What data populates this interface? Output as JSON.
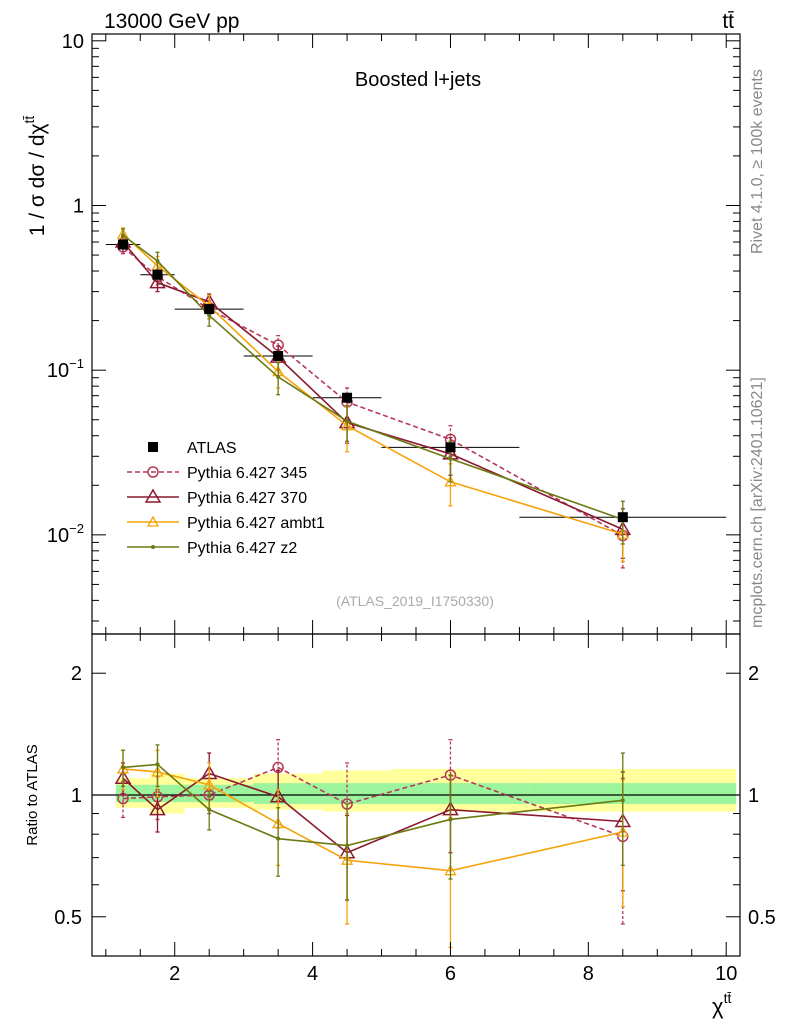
{
  "header": {
    "energy_label": "13000 GeV pp",
    "process_label": "tt̄",
    "analysis_id": "(ATLAS_2019_I1750330)"
  },
  "side": {
    "rivet": "Rivet 4.1.0, ≥ 100k events",
    "mcplots": "mcplots.cern.ch [arXiv:2401.10621]"
  },
  "colors": {
    "atlas": "#000000",
    "p345": "#b53a5a",
    "p370": "#8b1a2e",
    "ambt1": "#f5a30a",
    "z2": "#6b7a12",
    "band_inner": "#9cf59c",
    "band_outer": "#ffff9c"
  },
  "chart_data": [
    {
      "id": "main",
      "type": "line",
      "title": "Boosted l+jets",
      "xlabel": "χ",
      "xlabel_sup": "tt̄",
      "ylabel": "1 / σ dσ / dχ",
      "ylabel_sup": "tt̄",
      "yscale": "log",
      "xlim": [
        0.8,
        10.2
      ],
      "ylim": [
        0.0025,
        11
      ],
      "y_ticks": [
        {
          "v": 10,
          "label": "10"
        },
        {
          "v": 1,
          "label": "1"
        },
        {
          "v": 0.1,
          "label": "10",
          "sup": "−1"
        },
        {
          "v": 0.01,
          "label": "10",
          "sup": "−2"
        }
      ],
      "legend": [
        {
          "label": "ATLAS",
          "key": "atlas"
        },
        {
          "label": "Pythia 6.427 345",
          "key": "p345"
        },
        {
          "label": "Pythia 6.427 370",
          "key": "p370"
        },
        {
          "label": "Pythia 6.427 ambt1",
          "key": "ambt1"
        },
        {
          "label": "Pythia 6.427 z2",
          "key": "z2"
        }
      ],
      "bins": [
        [
          1.0,
          1.5
        ],
        [
          1.5,
          2.0
        ],
        [
          2.0,
          3.0
        ],
        [
          3.0,
          4.0
        ],
        [
          4.0,
          5.0
        ],
        [
          5.0,
          7.0
        ],
        [
          7.0,
          10.0
        ]
      ],
      "x": [
        1.25,
        1.75,
        2.5,
        3.5,
        4.5,
        6.0,
        8.5
      ],
      "data": {
        "values": [
          0.58,
          0.38,
          0.235,
          0.122,
          0.068,
          0.034,
          0.0128
        ],
        "errors": [
          0.05,
          0.03,
          0.02,
          0.01,
          0.006,
          0.003,
          0.0012
        ]
      },
      "series": [
        {
          "key": "p345",
          "name": "Pythia 6.427 345",
          "marker": "circle",
          "dashed": true,
          "values": [
            0.56,
            0.37,
            0.235,
            0.142,
            0.064,
            0.038,
            0.0099
          ],
          "errors": [
            0.05,
            0.04,
            0.03,
            0.02,
            0.014,
            0.008,
            0.0036
          ]
        },
        {
          "key": "p370",
          "name": "Pythia 6.427 370",
          "marker": "triangle",
          "dashed": false,
          "values": [
            0.6,
            0.34,
            0.26,
            0.12,
            0.048,
            0.031,
            0.0108
          ],
          "errors": [
            0.05,
            0.04,
            0.03,
            0.02,
            0.012,
            0.008,
            0.0036
          ]
        },
        {
          "key": "ambt1",
          "name": "Pythia 6.427 ambt1",
          "marker": "triangle-small",
          "dashed": false,
          "values": [
            0.67,
            0.43,
            0.245,
            0.098,
            0.046,
            0.021,
            0.0101
          ],
          "errors": [
            0.06,
            0.06,
            0.04,
            0.02,
            0.014,
            0.006,
            0.0032
          ]
        },
        {
          "key": "z2",
          "name": "Pythia 6.427 z2",
          "marker": "dot",
          "dashed": false,
          "values": [
            0.66,
            0.46,
            0.215,
            0.091,
            0.049,
            0.029,
            0.0124
          ],
          "errors": [
            0.06,
            0.06,
            0.03,
            0.02,
            0.012,
            0.008,
            0.0036
          ]
        }
      ]
    },
    {
      "id": "ratio",
      "type": "line",
      "ylabel": "Ratio to ATLAS",
      "yscale": "log",
      "xlim": [
        0.8,
        10.2
      ],
      "ylim": [
        0.4,
        2.5
      ],
      "x_ticks": [
        2,
        4,
        6,
        8,
        10
      ],
      "y_ticks": [
        0.5,
        1,
        2
      ],
      "bins": [
        [
          1.0,
          1.5
        ],
        [
          1.5,
          2.0
        ],
        [
          2.0,
          3.0
        ],
        [
          3.0,
          4.0
        ],
        [
          4.0,
          5.0
        ],
        [
          5.0,
          7.0
        ],
        [
          7.0,
          10.0
        ]
      ],
      "x": [
        1.25,
        1.75,
        2.5,
        3.5,
        4.5,
        6.0,
        8.5
      ],
      "band_inner": [
        [
          0.96,
          1.06
        ],
        [
          0.96,
          1.06
        ],
        [
          0.96,
          1.06
        ],
        [
          0.95,
          1.07
        ],
        [
          0.95,
          1.07
        ],
        [
          0.95,
          1.07
        ],
        [
          0.95,
          1.07
        ]
      ],
      "band_outer": [
        [
          0.93,
          1.1
        ],
        [
          0.9,
          1.13
        ],
        [
          0.93,
          1.1
        ],
        [
          0.92,
          1.13
        ],
        [
          0.91,
          1.15
        ],
        [
          0.91,
          1.16
        ],
        [
          0.91,
          1.16
        ]
      ],
      "series": [
        {
          "key": "p345",
          "marker": "circle",
          "dashed": true,
          "values": [
            0.98,
            0.99,
            1.0,
            1.17,
            0.95,
            1.12,
            0.79
          ],
          "errors": [
            0.1,
            0.12,
            0.1,
            0.2,
            0.25,
            0.25,
            0.31
          ]
        },
        {
          "key": "p370",
          "marker": "triangle",
          "dashed": false,
          "values": [
            1.1,
            0.92,
            1.13,
            0.99,
            0.72,
            0.92,
            0.86
          ],
          "errors": [
            0.1,
            0.11,
            0.14,
            0.16,
            0.17,
            0.2,
            0.28
          ]
        },
        {
          "key": "ambt1",
          "marker": "triangle-small",
          "dashed": false,
          "values": [
            1.16,
            1.14,
            1.06,
            0.85,
            0.69,
            0.65,
            0.81
          ],
          "errors": [
            0.13,
            0.15,
            0.14,
            0.18,
            0.21,
            0.23,
            0.28
          ]
        },
        {
          "key": "z2",
          "marker": "dot",
          "dashed": false,
          "values": [
            1.17,
            1.19,
            0.92,
            0.78,
            0.75,
            0.87,
            0.97
          ],
          "errors": [
            0.12,
            0.14,
            0.1,
            0.15,
            0.2,
            0.25,
            0.3
          ]
        }
      ]
    }
  ]
}
